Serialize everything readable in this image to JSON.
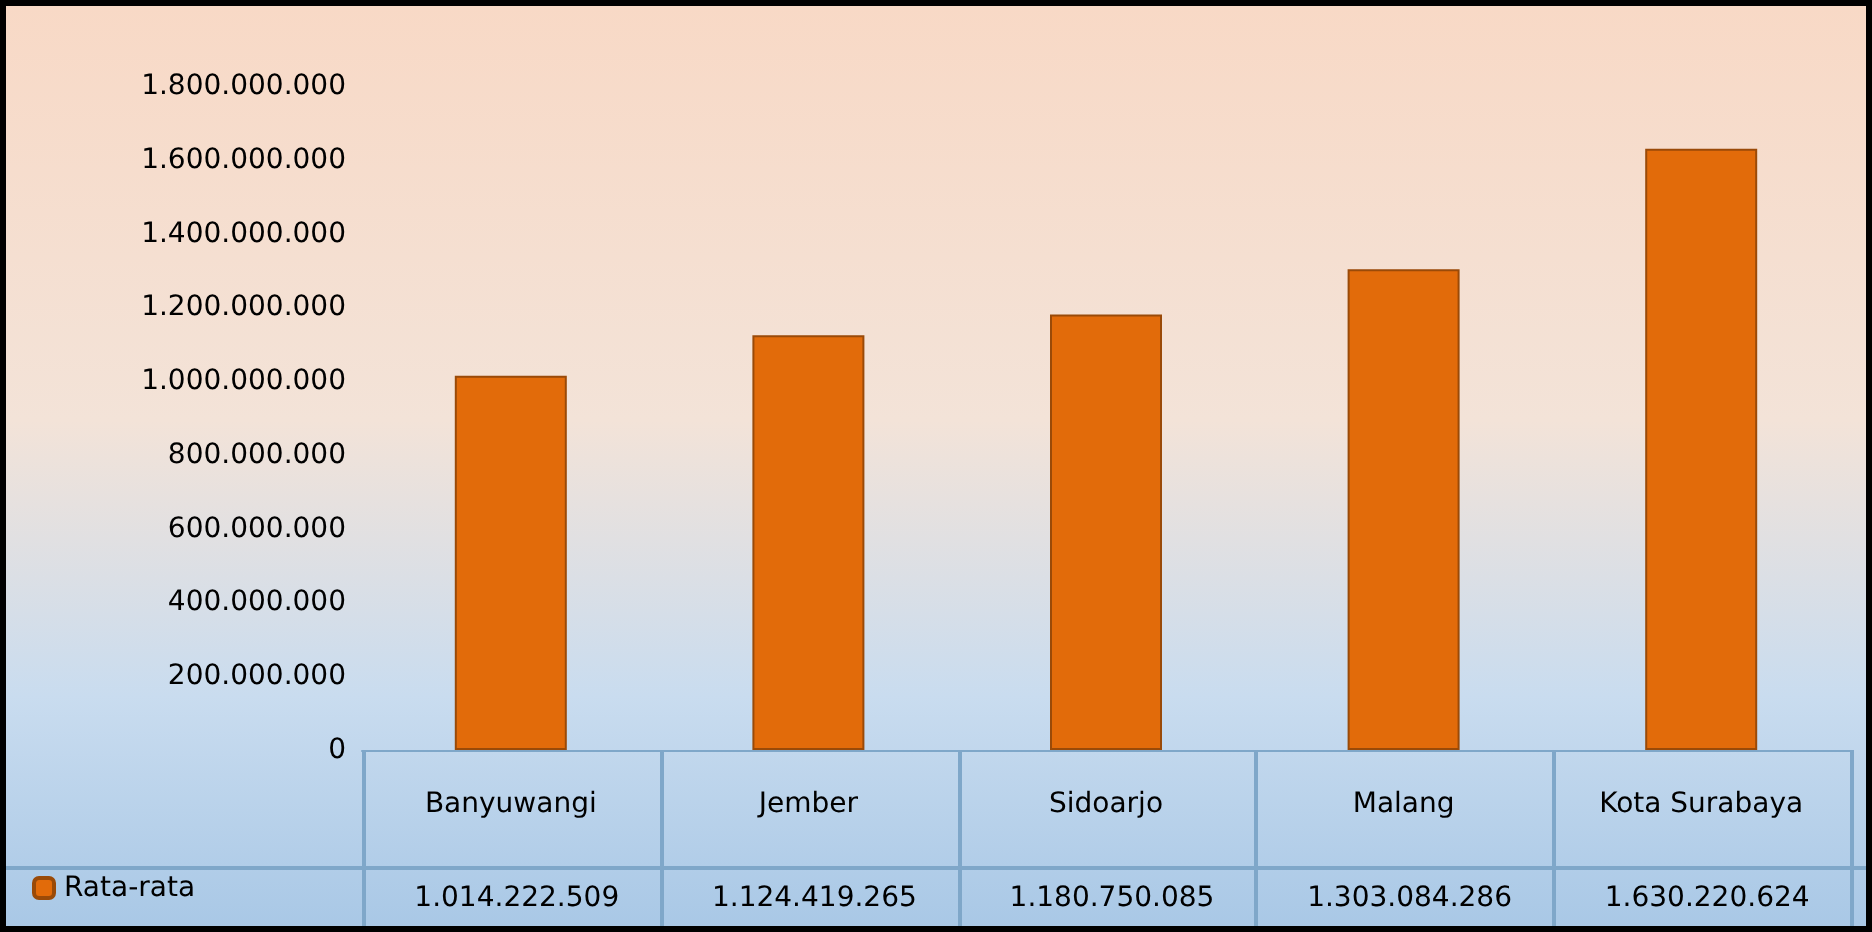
{
  "chart_data": {
    "type": "bar",
    "categories": [
      "Banyuwangi",
      "Jember",
      "Sidoarjo",
      "Malang",
      "Kota Surabaya"
    ],
    "series": [
      {
        "name": "Rata-rata",
        "color": "#e26b0a",
        "values": [
          1014222509,
          1124419265,
          1180750085,
          1303084286,
          1630220624
        ],
        "value_labels": [
          "1.014.222.509",
          "1.124.419.265",
          "1.180.750.085",
          "1.303.084.286",
          "1.630.220.624"
        ]
      }
    ],
    "ylim": [
      0,
      1800000000
    ],
    "yticks": [
      {
        "value": 0,
        "label": "0"
      },
      {
        "value": 200000000,
        "label": "200.000.000"
      },
      {
        "value": 400000000,
        "label": "400.000.000"
      },
      {
        "value": 600000000,
        "label": "600.000.000"
      },
      {
        "value": 800000000,
        "label": "800.000.000"
      },
      {
        "value": 1000000000,
        "label": "1.000.000.000"
      },
      {
        "value": 1200000000,
        "label": "1.200.000.000"
      },
      {
        "value": 1400000000,
        "label": "1.400.000.000"
      },
      {
        "value": 1600000000,
        "label": "1.600.000.000"
      },
      {
        "value": 1800000000,
        "label": "1.800.000.000"
      }
    ],
    "grid": false,
    "legend": "bottom left"
  }
}
